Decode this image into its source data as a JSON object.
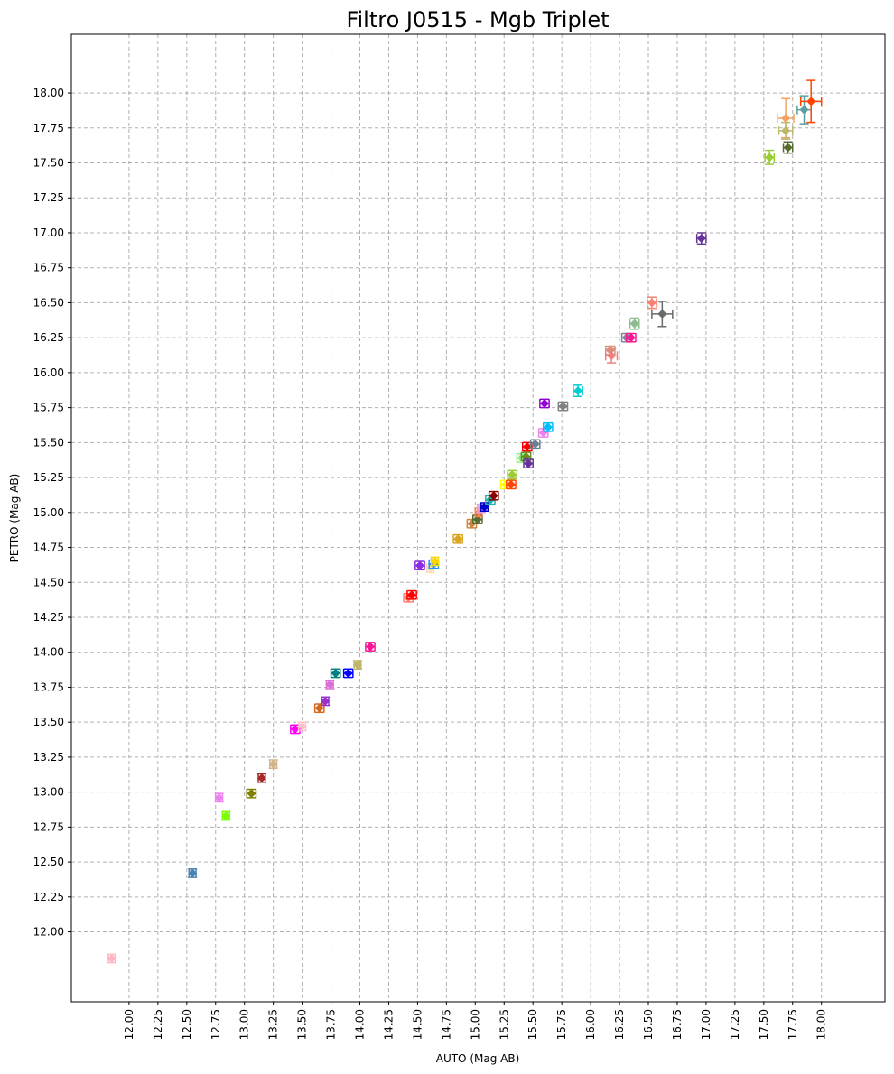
{
  "chart_data": {
    "type": "scatter",
    "title": "Filtro J0515 - Mgb Triplet",
    "xlabel": "AUTO (Mag AB)",
    "ylabel": "PETRO (Mag AB)",
    "xlim": [
      11.5,
      18.55
    ],
    "ylim": [
      11.5,
      18.42
    ],
    "x_ticks": [
      "12.00",
      "12.25",
      "12.50",
      "12.75",
      "13.00",
      "13.25",
      "13.50",
      "13.75",
      "14.00",
      "14.25",
      "14.50",
      "14.75",
      "15.00",
      "15.25",
      "15.50",
      "15.75",
      "16.00",
      "16.25",
      "16.50",
      "16.75",
      "17.00",
      "17.25",
      "17.50",
      "17.75",
      "18.00"
    ],
    "y_ticks": [
      "12.00",
      "12.25",
      "12.50",
      "12.75",
      "13.00",
      "13.25",
      "13.50",
      "13.75",
      "14.00",
      "14.25",
      "14.50",
      "14.75",
      "15.00",
      "15.25",
      "15.50",
      "15.75",
      "16.00",
      "16.25",
      "16.50",
      "16.75",
      "17.00",
      "17.25",
      "17.50",
      "17.75",
      "18.00"
    ],
    "grid": true,
    "points": [
      {
        "x": 11.85,
        "y": 11.81,
        "xerr": 0.03,
        "yerr": 0.03,
        "color": "#ffb6c1"
      },
      {
        "x": 12.55,
        "y": 12.42,
        "xerr": 0.03,
        "yerr": 0.03,
        "color": "#4682b4"
      },
      {
        "x": 12.78,
        "y": 12.96,
        "xerr": 0.03,
        "yerr": 0.03,
        "color": "#ee82ee"
      },
      {
        "x": 12.84,
        "y": 12.83,
        "xerr": 0.03,
        "yerr": 0.03,
        "color": "#7cfc00"
      },
      {
        "x": 13.06,
        "y": 12.99,
        "xerr": 0.04,
        "yerr": 0.03,
        "color": "#808000"
      },
      {
        "x": 13.15,
        "y": 13.1,
        "xerr": 0.03,
        "yerr": 0.03,
        "color": "#a52a2a"
      },
      {
        "x": 13.25,
        "y": 13.2,
        "xerr": 0.03,
        "yerr": 0.03,
        "color": "#d2b48c"
      },
      {
        "x": 13.44,
        "y": 13.45,
        "xerr": 0.04,
        "yerr": 0.03,
        "color": "#ff00ff"
      },
      {
        "x": 13.5,
        "y": 13.47,
        "xerr": 0.03,
        "yerr": 0.03,
        "color": "#ffc0cb"
      },
      {
        "x": 13.65,
        "y": 13.6,
        "xerr": 0.04,
        "yerr": 0.03,
        "color": "#d2691e"
      },
      {
        "x": 13.7,
        "y": 13.65,
        "xerr": 0.03,
        "yerr": 0.03,
        "color": "#9932cc"
      },
      {
        "x": 13.74,
        "y": 13.77,
        "xerr": 0.03,
        "yerr": 0.03,
        "color": "#da70d6"
      },
      {
        "x": 13.79,
        "y": 13.85,
        "xerr": 0.04,
        "yerr": 0.03,
        "color": "#008080"
      },
      {
        "x": 13.9,
        "y": 13.85,
        "xerr": 0.04,
        "yerr": 0.03,
        "color": "#0000ff"
      },
      {
        "x": 13.98,
        "y": 13.91,
        "xerr": 0.03,
        "yerr": 0.03,
        "color": "#bdb76b"
      },
      {
        "x": 14.09,
        "y": 14.04,
        "xerr": 0.04,
        "yerr": 0.03,
        "color": "#ff1493"
      },
      {
        "x": 14.42,
        "y": 14.39,
        "xerr": 0.04,
        "yerr": 0.03,
        "color": "#fa8072"
      },
      {
        "x": 14.45,
        "y": 14.41,
        "xerr": 0.04,
        "yerr": 0.03,
        "color": "#ff0000"
      },
      {
        "x": 14.52,
        "y": 14.62,
        "xerr": 0.04,
        "yerr": 0.03,
        "color": "#8a2be2"
      },
      {
        "x": 14.61,
        "y": 14.6,
        "xerr": 0.03,
        "yerr": 0.03,
        "color": "#f5deb3"
      },
      {
        "x": 14.64,
        "y": 14.63,
        "xerr": 0.04,
        "yerr": 0.03,
        "color": "#1e90ff"
      },
      {
        "x": 14.65,
        "y": 14.65,
        "xerr": 0.03,
        "yerr": 0.03,
        "color": "#ffd700"
      },
      {
        "x": 14.85,
        "y": 14.81,
        "xerr": 0.04,
        "yerr": 0.03,
        "color": "#daa520"
      },
      {
        "x": 14.97,
        "y": 14.92,
        "xerr": 0.04,
        "yerr": 0.03,
        "color": "#cd853f"
      },
      {
        "x": 15.02,
        "y": 14.95,
        "xerr": 0.04,
        "yerr": 0.03,
        "color": "#556b2f"
      },
      {
        "x": 15.03,
        "y": 15.0,
        "xerr": 0.03,
        "yerr": 0.03,
        "color": "#ff7f50"
      },
      {
        "x": 15.05,
        "y": 15.03,
        "xerr": 0.03,
        "yerr": 0.03,
        "color": "#dda0dd"
      },
      {
        "x": 15.08,
        "y": 15.04,
        "xerr": 0.03,
        "yerr": 0.03,
        "color": "#0000cd"
      },
      {
        "x": 15.13,
        "y": 15.09,
        "xerr": 0.04,
        "yerr": 0.03,
        "color": "#20b2aa"
      },
      {
        "x": 15.16,
        "y": 15.12,
        "xerr": 0.04,
        "yerr": 0.03,
        "color": "#8b0000"
      },
      {
        "x": 15.26,
        "y": 15.2,
        "xerr": 0.04,
        "yerr": 0.03,
        "color": "#ffff00"
      },
      {
        "x": 15.31,
        "y": 15.2,
        "xerr": 0.04,
        "yerr": 0.03,
        "color": "#ff4500"
      },
      {
        "x": 15.32,
        "y": 15.27,
        "xerr": 0.04,
        "yerr": 0.03,
        "color": "#9acd32"
      },
      {
        "x": 15.4,
        "y": 15.39,
        "xerr": 0.04,
        "yerr": 0.03,
        "color": "#90ee90"
      },
      {
        "x": 15.44,
        "y": 15.4,
        "xerr": 0.04,
        "yerr": 0.03,
        "color": "#6b8e23"
      },
      {
        "x": 15.46,
        "y": 15.35,
        "xerr": 0.04,
        "yerr": 0.03,
        "color": "#663399"
      },
      {
        "x": 15.45,
        "y": 15.47,
        "xerr": 0.04,
        "yerr": 0.03,
        "color": "#ff0000"
      },
      {
        "x": 15.52,
        "y": 15.49,
        "xerr": 0.04,
        "yerr": 0.03,
        "color": "#708090"
      },
      {
        "x": 15.59,
        "y": 15.57,
        "xerr": 0.04,
        "yerr": 0.03,
        "color": "#ee82ee"
      },
      {
        "x": 15.63,
        "y": 15.61,
        "xerr": 0.04,
        "yerr": 0.03,
        "color": "#00bfff"
      },
      {
        "x": 15.6,
        "y": 15.78,
        "xerr": 0.04,
        "yerr": 0.03,
        "color": "#9400d3"
      },
      {
        "x": 15.76,
        "y": 15.76,
        "xerr": 0.04,
        "yerr": 0.03,
        "color": "#808080"
      },
      {
        "x": 15.89,
        "y": 15.87,
        "xerr": 0.04,
        "yerr": 0.04,
        "color": "#00ced1"
      },
      {
        "x": 16.17,
        "y": 16.16,
        "xerr": 0.04,
        "yerr": 0.03,
        "color": "#d2967e"
      },
      {
        "x": 16.18,
        "y": 16.12,
        "xerr": 0.05,
        "yerr": 0.05,
        "color": "#f08080"
      },
      {
        "x": 16.31,
        "y": 16.25,
        "xerr": 0.04,
        "yerr": 0.03,
        "color": "#778899"
      },
      {
        "x": 16.35,
        "y": 16.25,
        "xerr": 0.04,
        "yerr": 0.03,
        "color": "#ff1493"
      },
      {
        "x": 16.38,
        "y": 16.35,
        "xerr": 0.04,
        "yerr": 0.04,
        "color": "#8fbc8f"
      },
      {
        "x": 16.53,
        "y": 16.5,
        "xerr": 0.04,
        "yerr": 0.04,
        "color": "#fa8072"
      },
      {
        "x": 16.62,
        "y": 16.42,
        "xerr": 0.09,
        "yerr": 0.09,
        "color": "#696969"
      },
      {
        "x": 16.96,
        "y": 16.96,
        "xerr": 0.04,
        "yerr": 0.04,
        "color": "#663399"
      },
      {
        "x": 17.55,
        "y": 17.54,
        "xerr": 0.04,
        "yerr": 0.05,
        "color": "#9acd32"
      },
      {
        "x": 17.69,
        "y": 17.82,
        "xerr": 0.07,
        "yerr": 0.14,
        "color": "#f4a460"
      },
      {
        "x": 17.69,
        "y": 17.73,
        "xerr": 0.06,
        "yerr": 0.06,
        "color": "#bdb76b"
      },
      {
        "x": 17.71,
        "y": 17.61,
        "xerr": 0.04,
        "yerr": 0.04,
        "color": "#556b2f"
      },
      {
        "x": 17.85,
        "y": 17.88,
        "xerr": 0.06,
        "yerr": 0.1,
        "color": "#5f9ea0"
      },
      {
        "x": 17.91,
        "y": 17.94,
        "xerr": 0.09,
        "yerr": 0.15,
        "color": "#ff4500"
      }
    ]
  }
}
